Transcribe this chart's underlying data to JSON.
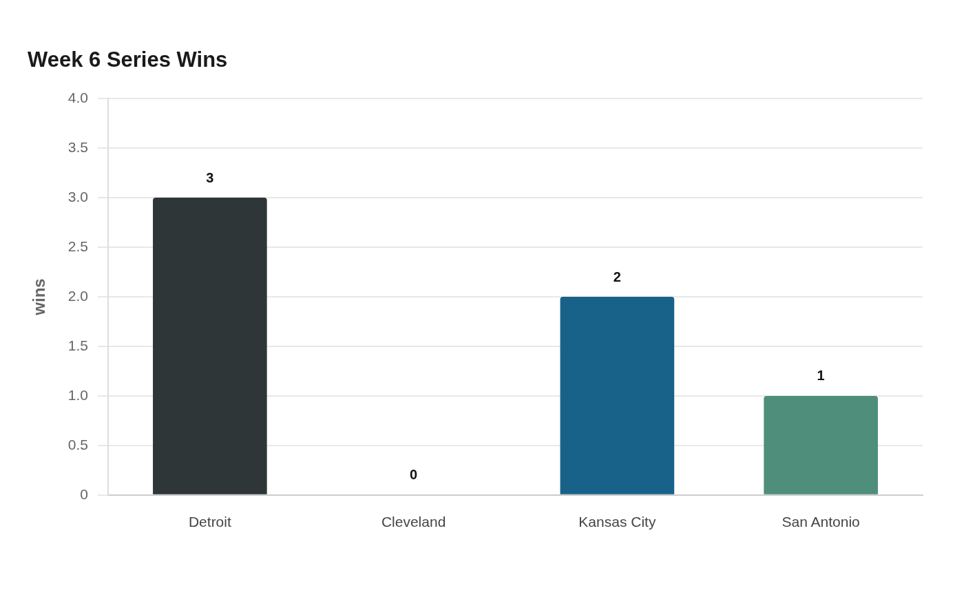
{
  "chart_data": {
    "type": "bar",
    "title": "Week 6 Series Wins",
    "ylabel": "wins",
    "categories": [
      "Detroit",
      "Cleveland",
      "Kansas City",
      "San Antonio"
    ],
    "values": [
      3,
      0,
      2,
      1
    ],
    "colors": [
      "#2e3638",
      "#8a3b3b",
      "#18628a",
      "#4e8e7b"
    ],
    "ylim": [
      0,
      4
    ],
    "yticks": [
      {
        "value": 0,
        "label": "0"
      },
      {
        "value": 0.5,
        "label": "0.5"
      },
      {
        "value": 1,
        "label": "1.0"
      },
      {
        "value": 1.5,
        "label": "1.5"
      },
      {
        "value": 2,
        "label": "2.0"
      },
      {
        "value": 2.5,
        "label": "2.5"
      },
      {
        "value": 3,
        "label": "3.0"
      },
      {
        "value": 3.5,
        "label": "3.5"
      },
      {
        "value": 4,
        "label": "4.0"
      }
    ],
    "grid": "y",
    "legend": false,
    "data_labels": true
  }
}
